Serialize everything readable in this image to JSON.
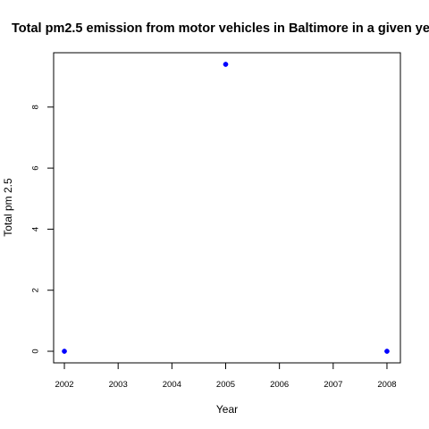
{
  "chart_data": {
    "type": "scatter",
    "title": "Total pm2.5 emission from motor vehicles in Baltimore in a given ye",
    "xlabel": "Year",
    "ylabel": "Total pm 2.5",
    "x_ticks": [
      "2002",
      "2003",
      "2004",
      "2005",
      "2006",
      "2007",
      "2008"
    ],
    "y_ticks": [
      "0",
      "2",
      "4",
      "6",
      "8"
    ],
    "xlim": [
      2001.8,
      2008.25
    ],
    "ylim": [
      -0.38,
      9.78
    ],
    "grid": false,
    "point_color": "#0000ff",
    "series": [
      {
        "x": [
          2002,
          2005,
          2008
        ],
        "y": [
          0,
          9.4,
          0
        ]
      }
    ]
  }
}
